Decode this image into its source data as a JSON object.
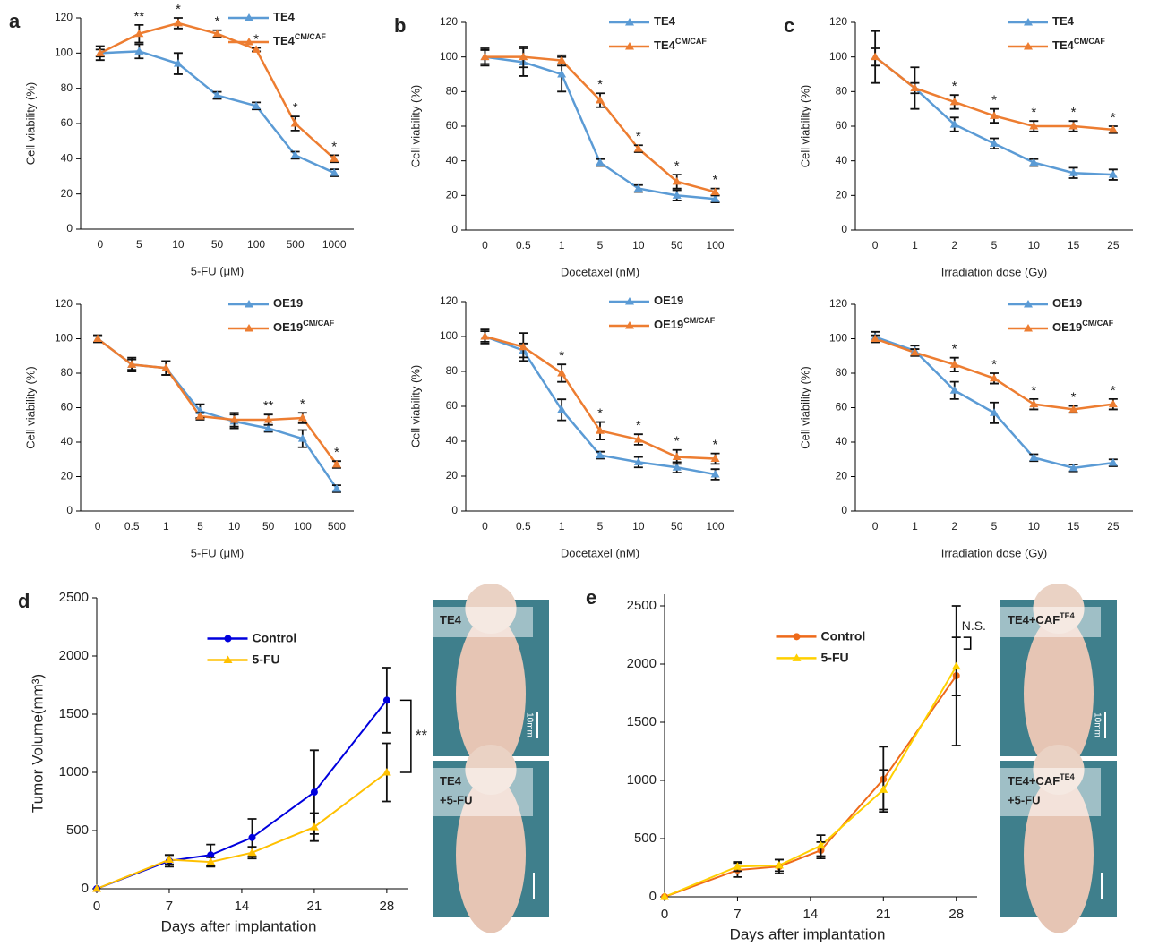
{
  "chart_data": [
    {
      "type": "line",
      "panel": "a",
      "xlabel": "5-FU (μM)",
      "ylabel": "Cell viability (%)",
      "legend": "upper right",
      "categories": [
        "0",
        "5",
        "10",
        "50",
        "100",
        "500",
        "1000"
      ],
      "ylim": [
        0,
        120
      ],
      "yticks": [
        0,
        20,
        40,
        60,
        80,
        100,
        120
      ],
      "series": [
        {
          "name": "TE4",
          "color": "#5b9bd5",
          "marker": "triangle",
          "values": [
            100,
            101,
            94,
            76,
            70,
            42,
            32
          ],
          "errors": [
            2,
            4,
            6,
            2,
            2,
            2,
            2
          ]
        },
        {
          "name": "TE4",
          "name_sup": "CM/CAF",
          "color": "#ed7d31",
          "marker": "triangle",
          "values": [
            100,
            111,
            117,
            111,
            102,
            60,
            40
          ],
          "errors": [
            4,
            5,
            3,
            2,
            1,
            4,
            2
          ]
        }
      ],
      "annotations": [
        {
          "text": "**",
          "category": "5"
        },
        {
          "text": "*",
          "category": "10"
        },
        {
          "text": "*",
          "category": "50"
        },
        {
          "text": "*",
          "category": "100"
        },
        {
          "text": "*",
          "category": "500"
        },
        {
          "text": "*",
          "category": "1000"
        }
      ]
    },
    {
      "type": "line",
      "xlabel": "5-FU (μM)",
      "ylabel": "Cell viability (%)",
      "legend": "upper right",
      "categories": [
        "0",
        "0.5",
        "1",
        "5",
        "10",
        "50",
        "100",
        "500"
      ],
      "ylim": [
        0,
        120
      ],
      "yticks": [
        0,
        20,
        40,
        60,
        80,
        100,
        120
      ],
      "series": [
        {
          "name": "OE19",
          "color": "#5b9bd5",
          "marker": "triangle",
          "values": [
            100,
            85,
            83,
            58,
            52,
            48,
            42,
            13
          ],
          "errors": [
            2,
            3,
            4,
            4,
            4,
            2,
            5,
            2
          ]
        },
        {
          "name": "OE19",
          "name_sup": "CM/CAF",
          "color": "#ed7d31",
          "marker": "triangle",
          "values": [
            100,
            85,
            83,
            55,
            53,
            53,
            54,
            27
          ],
          "errors": [
            2,
            4,
            4,
            2,
            4,
            3,
            3,
            2
          ]
        }
      ],
      "annotations": [
        {
          "text": "**",
          "category": "50"
        },
        {
          "text": "*",
          "category": "100"
        },
        {
          "text": "*",
          "category": "500"
        }
      ]
    },
    {
      "type": "line",
      "panel": "b",
      "xlabel": "Docetaxel (nM)",
      "ylabel": "Cell viability (%)",
      "legend": "upper right",
      "categories": [
        "0",
        "0.5",
        "1",
        "5",
        "10",
        "50",
        "100"
      ],
      "ylim": [
        0,
        120
      ],
      "yticks": [
        0,
        20,
        40,
        60,
        80,
        100,
        120
      ],
      "series": [
        {
          "name": "TE4",
          "color": "#5b9bd5",
          "marker": "triangle",
          "values": [
            100,
            97,
            90,
            39,
            24,
            20,
            18
          ],
          "errors": [
            5,
            8,
            10,
            2,
            2,
            3,
            2
          ]
        },
        {
          "name": "TE4",
          "name_sup": "CM/CAF",
          "color": "#ed7d31",
          "marker": "triangle",
          "values": [
            100,
            100,
            98,
            75,
            47,
            28,
            22
          ],
          "errors": [
            4,
            6,
            3,
            4,
            2,
            4,
            2
          ]
        }
      ],
      "annotations": [
        {
          "text": "*",
          "category": "5"
        },
        {
          "text": "*",
          "category": "10"
        },
        {
          "text": "*",
          "category": "50"
        },
        {
          "text": "*",
          "category": "100"
        }
      ]
    },
    {
      "type": "line",
      "xlabel": "Docetaxel (nM)",
      "ylabel": "Cell viability (%)",
      "legend": "upper right",
      "categories": [
        "0",
        "0.5",
        "1",
        "5",
        "10",
        "50",
        "100"
      ],
      "ylim": [
        0,
        120
      ],
      "yticks": [
        0,
        20,
        40,
        60,
        80,
        100,
        120
      ],
      "series": [
        {
          "name": "OE19",
          "color": "#5b9bd5",
          "marker": "triangle",
          "values": [
            100,
            92,
            58,
            32,
            28,
            25,
            21
          ],
          "errors": [
            4,
            4,
            6,
            2,
            3,
            3,
            3
          ]
        },
        {
          "name": "OE19",
          "name_sup": "CM/CAF",
          "color": "#ed7d31",
          "marker": "triangle",
          "values": [
            100,
            94,
            79,
            46,
            41,
            31,
            30
          ],
          "errors": [
            3,
            8,
            5,
            5,
            3,
            4,
            3
          ]
        }
      ],
      "annotations": [
        {
          "text": "*",
          "category": "1"
        },
        {
          "text": "*",
          "category": "5"
        },
        {
          "text": "*",
          "category": "10"
        },
        {
          "text": "*",
          "category": "50"
        },
        {
          "text": "*",
          "category": "100"
        }
      ]
    },
    {
      "type": "line",
      "panel": "c",
      "xlabel": "Irradiation dose (Gy)",
      "ylabel": "Cell viability (%)",
      "legend": "upper right",
      "categories": [
        "0",
        "1",
        "2",
        "5",
        "10",
        "15",
        "25"
      ],
      "ylim": [
        0,
        120
      ],
      "yticks": [
        0,
        20,
        40,
        60,
        80,
        100,
        120
      ],
      "series": [
        {
          "name": "TE4",
          "color": "#5b9bd5",
          "marker": "triangle",
          "values": [
            100,
            82,
            61,
            50,
            39,
            33,
            32
          ],
          "errors": [
            15,
            12,
            4,
            3,
            2,
            3,
            3
          ]
        },
        {
          "name": "TE4",
          "name_sup": "CM/CAF",
          "color": "#ed7d31",
          "marker": "triangle",
          "values": [
            100,
            82,
            74,
            66,
            60,
            60,
            58
          ],
          "errors": [
            5,
            3,
            4,
            4,
            3,
            3,
            2
          ]
        }
      ],
      "annotations": [
        {
          "text": "*",
          "category": "2"
        },
        {
          "text": "*",
          "category": "5"
        },
        {
          "text": "*",
          "category": "10"
        },
        {
          "text": "*",
          "category": "15"
        },
        {
          "text": "*",
          "category": "25"
        }
      ]
    },
    {
      "type": "line",
      "xlabel": "Irradiation dose (Gy)",
      "ylabel": "Cell viability (%)",
      "legend": "upper right",
      "categories": [
        "0",
        "1",
        "2",
        "5",
        "10",
        "15",
        "25"
      ],
      "ylim": [
        0,
        120
      ],
      "yticks": [
        0,
        20,
        40,
        60,
        80,
        100,
        120
      ],
      "series": [
        {
          "name": "OE19",
          "color": "#5b9bd5",
          "marker": "triangle",
          "values": [
            101,
            93,
            70,
            57,
            31,
            25,
            28
          ],
          "errors": [
            3,
            3,
            5,
            6,
            2,
            2,
            2
          ]
        },
        {
          "name": "OE19",
          "name_sup": "CM/CAF",
          "color": "#ed7d31",
          "marker": "triangle",
          "values": [
            100,
            92,
            85,
            77,
            62,
            59,
            62
          ],
          "errors": [
            2,
            2,
            4,
            3,
            3,
            2,
            3
          ]
        }
      ],
      "annotations": [
        {
          "text": "*",
          "category": "2"
        },
        {
          "text": "*",
          "category": "5"
        },
        {
          "text": "*",
          "category": "10"
        },
        {
          "text": "*",
          "category": "15"
        },
        {
          "text": "*",
          "category": "25"
        }
      ]
    },
    {
      "type": "line",
      "panel": "d",
      "xlabel": "Days after implantation",
      "ylabel": "Tumor Volume(mm³)",
      "legend": "center",
      "x": [
        0,
        7,
        11,
        15,
        21,
        28
      ],
      "xlim": [
        0,
        30
      ],
      "xticks": [
        0,
        7,
        14,
        21,
        28
      ],
      "ylim": [
        0,
        2500
      ],
      "yticks": [
        0,
        500,
        1000,
        1500,
        2000,
        2500
      ],
      "series": [
        {
          "name": "Control",
          "color": "#0000dd",
          "marker": "circle",
          "values": [
            0,
            240,
            290,
            440,
            830,
            1620
          ],
          "errors": [
            0,
            50,
            90,
            160,
            360,
            280
          ]
        },
        {
          "name": "5-FU",
          "color": "#ffc000",
          "marker": "triangle",
          "values": [
            0,
            250,
            230,
            310,
            530,
            1000
          ],
          "errors": [
            0,
            40,
            40,
            50,
            120,
            250
          ]
        }
      ],
      "annotations": [
        {
          "text": "**",
          "x": 28
        }
      ]
    },
    {
      "type": "line",
      "panel": "e",
      "xlabel": "Days after implantation",
      "legend": "center",
      "x": [
        0,
        7,
        11,
        15,
        21,
        28
      ],
      "xlim": [
        0,
        30
      ],
      "xticks": [
        0,
        7,
        14,
        21,
        28
      ],
      "ylim": [
        0,
        2600
      ],
      "yticks": [
        0,
        500,
        1000,
        1500,
        2000,
        2500
      ],
      "series": [
        {
          "name": "Control",
          "color": "#ee6a1a",
          "marker": "circle",
          "values": [
            0,
            230,
            260,
            400,
            1010,
            1900
          ],
          "errors": [
            0,
            60,
            60,
            70,
            280,
            600
          ]
        },
        {
          "name": "5-FU",
          "color": "#ffd000",
          "marker": "triangle",
          "values": [
            0,
            260,
            270,
            440,
            920,
            1980
          ],
          "errors": [
            0,
            40,
            50,
            90,
            170,
            250
          ]
        }
      ],
      "annotations": [
        {
          "text": "N.S.",
          "x": 28
        }
      ]
    }
  ],
  "photos": [
    {
      "label": "TE4",
      "scale": "10mm"
    },
    {
      "label": "TE4",
      "line2": "+5-FU"
    },
    {
      "label": "TE4+CAF",
      "label_sup": "TE4",
      "scale": "10mm"
    },
    {
      "label": "TE4+CAF",
      "label_sup": "TE4",
      "line2": "+5-FU"
    }
  ]
}
